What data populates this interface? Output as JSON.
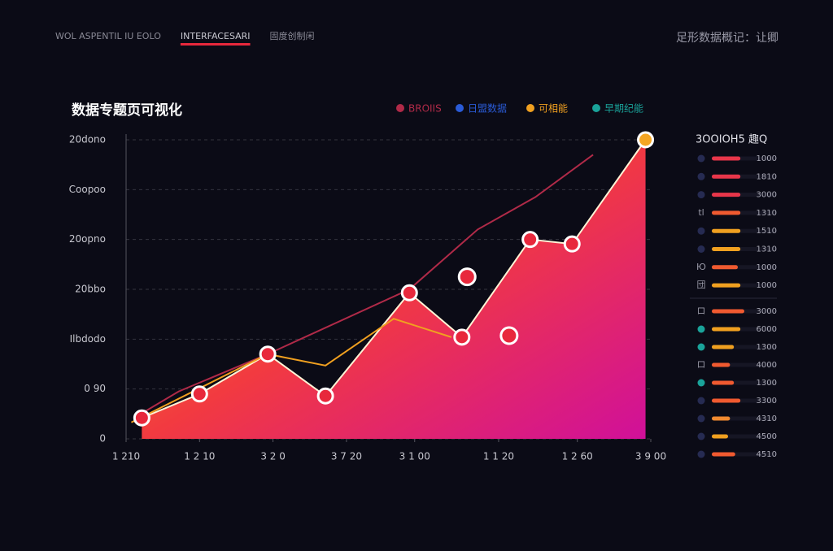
{
  "nav": {
    "tabs": [
      "WOL ASPENTIL IU EOLO",
      "INTERFACESARI",
      "固度创制闲"
    ],
    "active": 1,
    "right_text": "足形数据概记：让卿"
  },
  "chart_data": {
    "type": "area",
    "title": "数据专题页可视化",
    "xlim": [
      0,
      100
    ],
    "xticks": [
      {
        "value": 0,
        "label": "1 210"
      },
      {
        "value": 14,
        "label": "1 2 10"
      },
      {
        "value": 28,
        "label": "3 2 0"
      },
      {
        "value": 42,
        "label": "3 7 20"
      },
      {
        "value": 55,
        "label": "3 1 00"
      },
      {
        "value": 71,
        "label": "1 1 20"
      },
      {
        "value": 86,
        "label": "1 2 60"
      },
      {
        "value": 100,
        "label": "3 9 00"
      }
    ],
    "ylim": [
      0,
      600
    ],
    "yticks": [
      0,
      {
        "value": 100,
        "label": "0 90"
      },
      {
        "value": 200,
        "label": "Ilbdodo"
      },
      {
        "value": 300,
        "label": "20bbo"
      },
      {
        "value": 400,
        "label": "20opno"
      },
      {
        "value": 500,
        "label": "Coopoo"
      },
      {
        "value": 600,
        "label": "20dono"
      }
    ],
    "grid": true,
    "gradient": [
      "#f9a91e",
      "#f23a40",
      "#d0109a"
    ],
    "series": [
      {
        "name": "BROIIS",
        "color": "#b02a48",
        "type": "line",
        "x": [
          2,
          10,
          27,
          54,
          67,
          78,
          89
        ],
        "values": [
          45,
          95,
          170,
          300,
          420,
          485,
          570
        ]
      },
      {
        "name": "日盟数据",
        "color": "#2a5bd7",
        "type": "scatter",
        "marker_color": "#e8283c",
        "x": [
          65,
          73
        ],
        "values": [
          325,
          207
        ]
      },
      {
        "name": "可相能",
        "color": "#f0a020",
        "type": "line",
        "x": [
          1,
          27,
          38,
          51,
          62
        ],
        "values": [
          33,
          170,
          147,
          241,
          204
        ]
      },
      {
        "name": "早期纪能",
        "color": "#1aa39a",
        "type": "area",
        "marker_color": "#e8283c",
        "end_marker_color": "#f5a623",
        "x": [
          3,
          14,
          27,
          38,
          54,
          64,
          77,
          85,
          99
        ],
        "values": [
          42,
          90,
          170,
          86,
          293,
          204,
          400,
          391,
          600
        ]
      }
    ]
  },
  "panel": {
    "title": "3OOIOH5 趣Q",
    "rows": [
      {
        "dot": "#262b52",
        "color": "#e8364a",
        "bar": 44,
        "label": "1000"
      },
      {
        "dot": "#262b52",
        "color": "#e8364a",
        "bar": 44,
        "label": "1810"
      },
      {
        "dot": "#262b52",
        "color": "#e8364a",
        "bar": 44,
        "label": "3000"
      },
      {
        "glyph": "tl",
        "color": "#f05a30",
        "bar": 44,
        "label": "1310"
      },
      {
        "dot": "#262b52",
        "color": "#f0a020",
        "bar": 44,
        "label": "1510"
      },
      {
        "dot": "#262b52",
        "color": "#f0a020",
        "bar": 44,
        "label": "1310"
      },
      {
        "glyph": "Ю",
        "color": "#f05a30",
        "bar": 40,
        "label": "1000"
      },
      {
        "glyph": "団",
        "color": "#f0a020",
        "bar": 44,
        "label": "1000"
      },
      {
        "glyph": "ロ",
        "color": "#f05a30",
        "bar": 50,
        "label": "3000"
      },
      {
        "dot": "#1aa39a",
        "color": "#f0a020",
        "bar": 44,
        "label": "6000"
      },
      {
        "dot": "#1aa39a",
        "color": "#f0a020",
        "bar": 34,
        "label": "1300"
      },
      {
        "glyph": "ロ",
        "color": "#f05a30",
        "bar": 28,
        "label": "4000"
      },
      {
        "dot": "#1aa39a",
        "color": "#f05a30",
        "bar": 34,
        "label": "1300"
      },
      {
        "dot": "#262b52",
        "color": "#f05a30",
        "bar": 44,
        "label": "3300"
      },
      {
        "dot": "#262b52",
        "color": "#f08a30",
        "bar": 28,
        "label": "4310"
      },
      {
        "dot": "#262b52",
        "color": "#f0a020",
        "bar": 25,
        "label": "4500"
      },
      {
        "dot": "#262b52",
        "color": "#f05a30",
        "bar": 36,
        "label": "4510"
      }
    ]
  }
}
